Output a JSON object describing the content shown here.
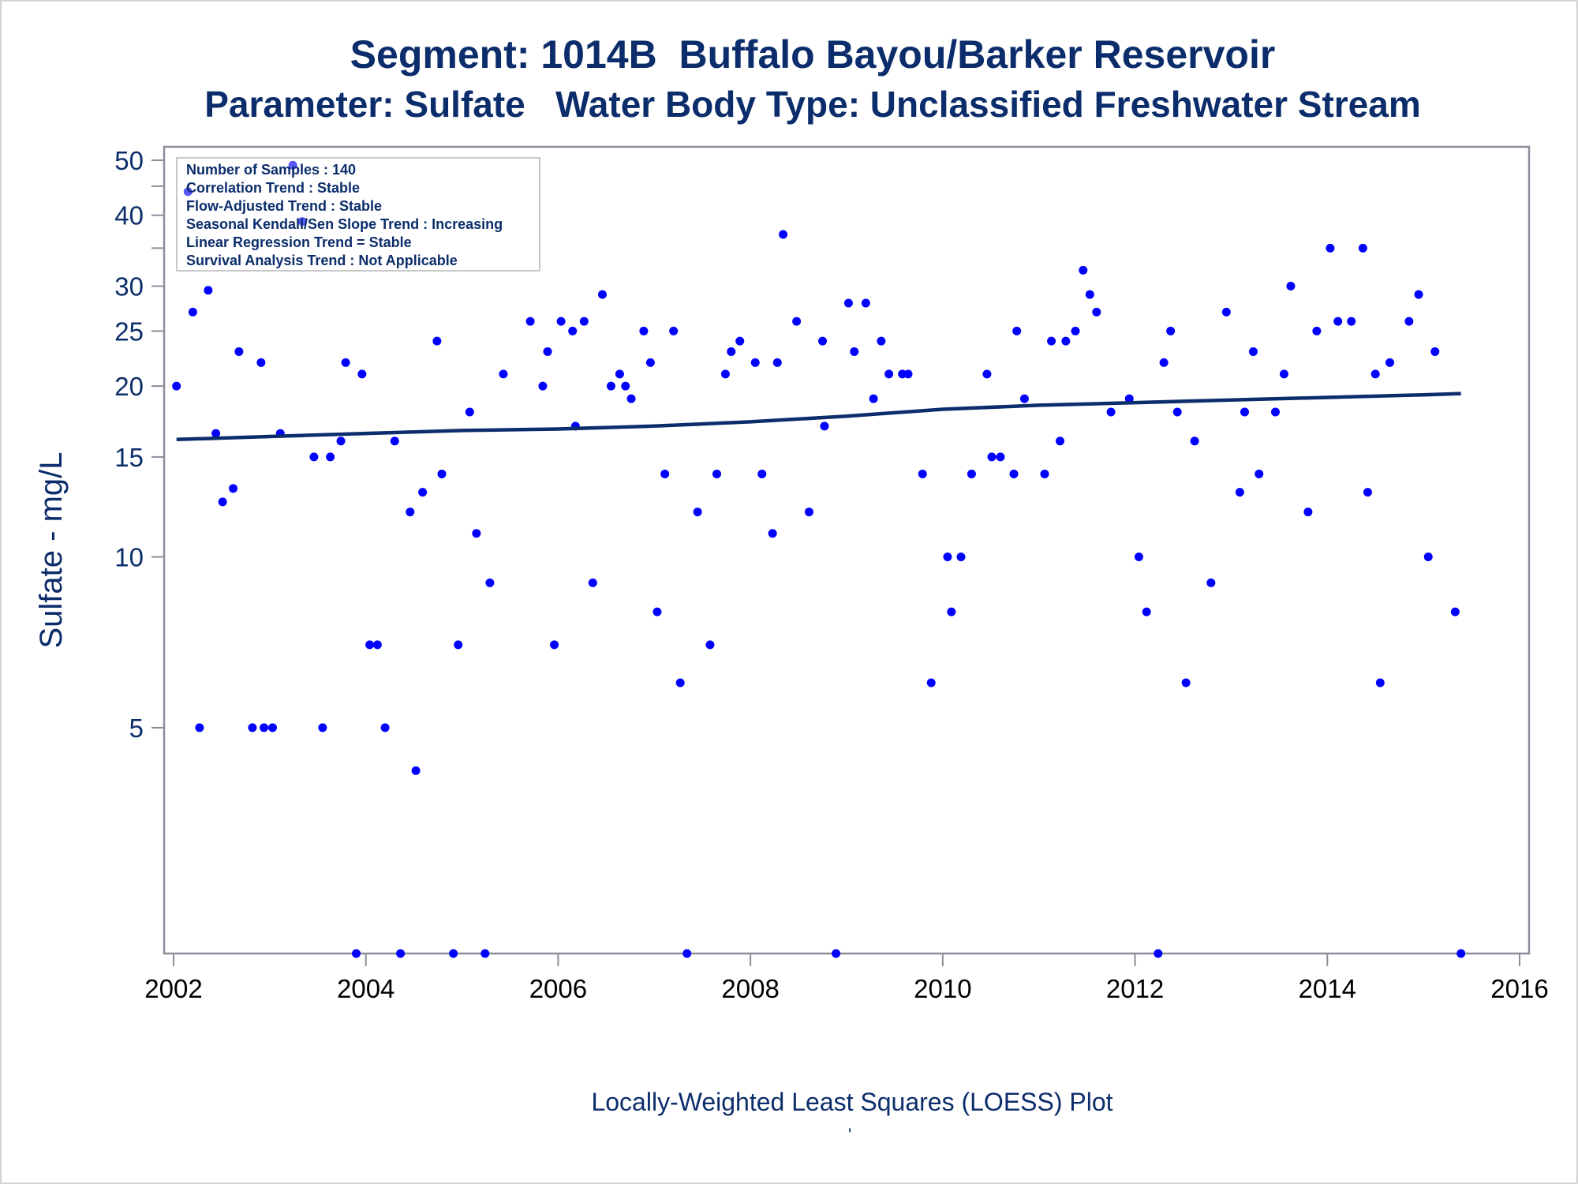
{
  "title1": "Segment: 1014B  Buffalo Bayou/Barker Reservoir",
  "title2": "Parameter: Sulfate   Water Body Type: Unclassified Freshwater Stream",
  "footnote": "Locally-Weighted Least Squares (LOESS) Plot",
  "footnote_mark": "'",
  "info_box": [
    "Number of Samples : 140",
    "Correlation Trend : Stable",
    "Flow-Adjusted Trend : Stable",
    "Seasonal Kendall/Sen Slope Trend : Increasing",
    "Linear Regression Trend = Stable",
    "Survival Analysis Trend : Not Applicable"
  ],
  "colors": {
    "text": "#0c2d6b",
    "points": "#0000ff",
    "line": "#0c2d6b",
    "frame": "#8a8f99"
  },
  "chart_data": {
    "type": "scatter",
    "ylabel": "Sulfate - mg/L",
    "xlim": [
      2002,
      2016
    ],
    "ylim": [
      2,
      50
    ],
    "yscale": "log",
    "x_ticks": [
      2002,
      2004,
      2006,
      2008,
      2010,
      2012,
      2014,
      2016
    ],
    "x_tick_labels": [
      "2002",
      "2004",
      "2006",
      "2008",
      "2010",
      "2012",
      "2014",
      "2016"
    ],
    "y_ticks": [
      5,
      10,
      15,
      20,
      25,
      30,
      40,
      50
    ],
    "y_tick_labels": [
      "5",
      "10",
      "15",
      "20",
      "25",
      "30",
      "40",
      "50"
    ],
    "y_minor_ticks": [
      45,
      35
    ],
    "points": [
      [
        2002.03,
        20
      ],
      [
        2002.15,
        44
      ],
      [
        2002.2,
        27
      ],
      [
        2002.27,
        5
      ],
      [
        2002.36,
        29.5
      ],
      [
        2002.44,
        16.5
      ],
      [
        2002.51,
        12.5
      ],
      [
        2002.62,
        13.2
      ],
      [
        2002.68,
        23
      ],
      [
        2002.82,
        5
      ],
      [
        2002.91,
        22
      ],
      [
        2002.94,
        5
      ],
      [
        2003.03,
        5
      ],
      [
        2003.11,
        16.5
      ],
      [
        2003.24,
        49
      ],
      [
        2003.34,
        39
      ],
      [
        2003.46,
        15
      ],
      [
        2003.55,
        5
      ],
      [
        2003.63,
        15
      ],
      [
        2003.74,
        16
      ],
      [
        2003.79,
        22
      ],
      [
        2003.9,
        2
      ],
      [
        2003.96,
        21
      ],
      [
        2004.04,
        7
      ],
      [
        2004.12,
        7
      ],
      [
        2004.2,
        5
      ],
      [
        2004.3,
        16
      ],
      [
        2004.36,
        2
      ],
      [
        2004.46,
        12
      ],
      [
        2004.52,
        4.2
      ],
      [
        2004.59,
        13
      ],
      [
        2004.74,
        24
      ],
      [
        2004.79,
        14
      ],
      [
        2004.91,
        2
      ],
      [
        2004.96,
        7
      ],
      [
        2005.08,
        18
      ],
      [
        2005.15,
        11
      ],
      [
        2005.24,
        2
      ],
      [
        2005.29,
        9
      ],
      [
        2005.43,
        21
      ],
      [
        2005.71,
        26
      ],
      [
        2005.84,
        20
      ],
      [
        2005.89,
        23
      ],
      [
        2005.96,
        7
      ],
      [
        2006.03,
        26
      ],
      [
        2006.15,
        25
      ],
      [
        2006.18,
        17
      ],
      [
        2006.27,
        26
      ],
      [
        2006.36,
        9
      ],
      [
        2006.46,
        29
      ],
      [
        2006.55,
        20
      ],
      [
        2006.64,
        21
      ],
      [
        2006.7,
        20
      ],
      [
        2006.76,
        19
      ],
      [
        2006.89,
        25
      ],
      [
        2006.96,
        22
      ],
      [
        2007.03,
        8
      ],
      [
        2007.11,
        14
      ],
      [
        2007.2,
        25
      ],
      [
        2007.27,
        6
      ],
      [
        2007.34,
        2
      ],
      [
        2007.45,
        12
      ],
      [
        2007.58,
        7
      ],
      [
        2007.65,
        14
      ],
      [
        2007.74,
        21
      ],
      [
        2007.8,
        23
      ],
      [
        2007.89,
        24
      ],
      [
        2008.05,
        22
      ],
      [
        2008.12,
        14
      ],
      [
        2008.23,
        11
      ],
      [
        2008.28,
        22
      ],
      [
        2008.34,
        37
      ],
      [
        2008.48,
        26
      ],
      [
        2008.61,
        12
      ],
      [
        2008.75,
        24
      ],
      [
        2008.77,
        17
      ],
      [
        2008.89,
        2
      ],
      [
        2009.02,
        28
      ],
      [
        2009.08,
        23
      ],
      [
        2009.2,
        28
      ],
      [
        2009.28,
        19
      ],
      [
        2009.36,
        24
      ],
      [
        2009.44,
        21
      ],
      [
        2009.58,
        21
      ],
      [
        2009.64,
        21
      ],
      [
        2009.79,
        14
      ],
      [
        2009.88,
        6
      ],
      [
        2010.05,
        10
      ],
      [
        2010.09,
        8
      ],
      [
        2010.19,
        10
      ],
      [
        2010.3,
        14
      ],
      [
        2010.46,
        21
      ],
      [
        2010.51,
        15
      ],
      [
        2010.6,
        15
      ],
      [
        2010.74,
        14
      ],
      [
        2010.77,
        25
      ],
      [
        2010.85,
        19
      ],
      [
        2011.06,
        14
      ],
      [
        2011.13,
        24
      ],
      [
        2011.22,
        16
      ],
      [
        2011.28,
        24
      ],
      [
        2011.38,
        25
      ],
      [
        2011.46,
        32
      ],
      [
        2011.53,
        29
      ],
      [
        2011.6,
        27
      ],
      [
        2011.75,
        18
      ],
      [
        2011.94,
        19
      ],
      [
        2012.04,
        10
      ],
      [
        2012.12,
        8
      ],
      [
        2012.24,
        2
      ],
      [
        2012.3,
        22
      ],
      [
        2012.37,
        25
      ],
      [
        2012.44,
        18
      ],
      [
        2012.53,
        6
      ],
      [
        2012.62,
        16
      ],
      [
        2012.79,
        9
      ],
      [
        2012.95,
        27
      ],
      [
        2013.09,
        13
      ],
      [
        2013.14,
        18
      ],
      [
        2013.23,
        23
      ],
      [
        2013.29,
        14
      ],
      [
        2013.46,
        18
      ],
      [
        2013.55,
        21
      ],
      [
        2013.62,
        30
      ],
      [
        2013.8,
        12
      ],
      [
        2013.89,
        25
      ],
      [
        2014.03,
        35
      ],
      [
        2014.11,
        26
      ],
      [
        2014.25,
        26
      ],
      [
        2014.37,
        35
      ],
      [
        2014.42,
        13
      ],
      [
        2014.5,
        21
      ],
      [
        2014.55,
        6
      ],
      [
        2014.65,
        22
      ],
      [
        2014.85,
        26
      ],
      [
        2014.95,
        29
      ],
      [
        2015.05,
        10
      ],
      [
        2015.12,
        23
      ],
      [
        2015.33,
        8
      ],
      [
        2015.39,
        2
      ]
    ],
    "loess_line": [
      [
        2002.03,
        16.1
      ],
      [
        2003,
        16.3
      ],
      [
        2004,
        16.5
      ],
      [
        2005,
        16.7
      ],
      [
        2006,
        16.8
      ],
      [
        2007,
        17.0
      ],
      [
        2008,
        17.3
      ],
      [
        2009,
        17.7
      ],
      [
        2010,
        18.2
      ],
      [
        2011,
        18.5
      ],
      [
        2012,
        18.7
      ],
      [
        2013,
        18.9
      ],
      [
        2014,
        19.1
      ],
      [
        2015,
        19.3
      ],
      [
        2015.39,
        19.4
      ]
    ]
  }
}
